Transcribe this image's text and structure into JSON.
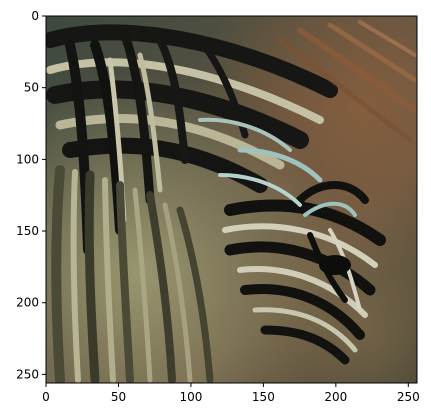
{
  "image": {
    "description_icon": "zebra-painting-image",
    "colors": {
      "black_stripe": "#161614",
      "pale_stripe": "#b9b79e",
      "green_tone": "#8d8f66",
      "brown_tone": "#6a4e38",
      "teal_highlight": "#9fc2bf",
      "axis": "#000000"
    }
  },
  "axes": {
    "xlim": [
      0,
      256
    ],
    "ylim": [
      256,
      0
    ],
    "x_ticks": [
      {
        "value": 0,
        "label": "0"
      },
      {
        "value": 50,
        "label": "50"
      },
      {
        "value": 100,
        "label": "100"
      },
      {
        "value": 150,
        "label": "150"
      },
      {
        "value": 200,
        "label": "200"
      },
      {
        "value": 250,
        "label": "250"
      }
    ],
    "y_ticks": [
      {
        "value": 0,
        "label": "0"
      },
      {
        "value": 50,
        "label": "50"
      },
      {
        "value": 100,
        "label": "100"
      },
      {
        "value": 150,
        "label": "150"
      },
      {
        "value": 200,
        "label": "200"
      },
      {
        "value": 250,
        "label": "250"
      }
    ]
  }
}
